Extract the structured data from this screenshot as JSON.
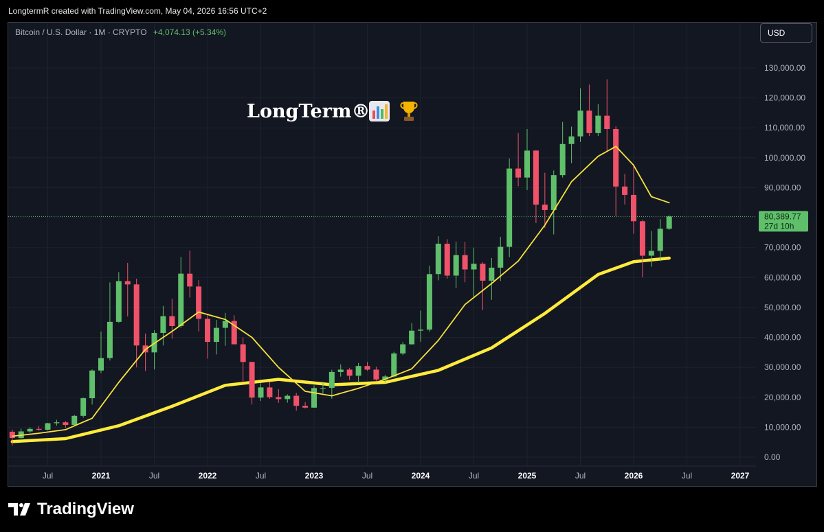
{
  "header": {
    "creator": "LongtermR created with TradingView.com, May 04, 2026 16:56 UTC+2"
  },
  "legend": {
    "symbol": "Bitcoin / U.S. Dollar · 1M · CRYPTO",
    "change": "+4,074.13 (+5.34%)"
  },
  "currency_button": "USD",
  "watermark": "LongTerm®",
  "branding": "TradingView",
  "colors": {
    "up": "#5fbf6a",
    "down": "#f0526a",
    "ma_fast": "#f7e23a",
    "ma_slow": "#ffeb3b",
    "background": "#131722"
  },
  "chart_data": {
    "type": "candlestick",
    "symbol": "Bitcoin / U.S. Dollar",
    "interval": "1M",
    "price_label": "80,389.77",
    "countdown_label": "27d 10h",
    "y_tick_labels": [
      "130,000.00",
      "120,000.00",
      "110,000.00",
      "100,000.00",
      "90,000.00",
      "80,000.00",
      "70,000.00",
      "60,000.00",
      "50,000.00",
      "40,000.00",
      "30,000.00",
      "20,000.00",
      "10,000.00",
      "0.00"
    ],
    "y_ticks": [
      130000,
      120000,
      110000,
      100000,
      90000,
      80000,
      70000,
      60000,
      50000,
      40000,
      30000,
      20000,
      10000,
      0
    ],
    "x_tick_labels": [
      "Jul",
      "2021",
      "Jul",
      "2022",
      "Jul",
      "2023",
      "Jul",
      "2024",
      "Jul",
      "2025",
      "Jul",
      "2026",
      "Jul",
      "2027"
    ],
    "x_ticks": [
      "2020-07",
      "2021-01",
      "2021-07",
      "2022-01",
      "2022-07",
      "2023-01",
      "2023-07",
      "2024-01",
      "2024-07",
      "2025-01",
      "2025-07",
      "2026-01",
      "2026-07",
      "2027-01"
    ],
    "ylim": [
      -1000,
      138000
    ],
    "candles": [
      [
        "2020-03",
        8500,
        9200,
        3900,
        6400
      ],
      [
        "2020-04",
        6400,
        9500,
        6200,
        8600
      ],
      [
        "2020-05",
        8600,
        10000,
        8100,
        9450
      ],
      [
        "2020-06",
        9450,
        10400,
        8900,
        9150
      ],
      [
        "2020-07",
        9150,
        11450,
        8900,
        11350
      ],
      [
        "2020-08",
        11350,
        12480,
        10550,
        11650
      ],
      [
        "2020-09",
        11650,
        12080,
        9850,
        10780
      ],
      [
        "2020-10",
        10780,
        14100,
        10400,
        13800
      ],
      [
        "2020-11",
        13800,
        19900,
        13200,
        19700
      ],
      [
        "2020-12",
        19700,
        29300,
        17600,
        28950
      ],
      [
        "2021-01",
        28950,
        41950,
        28100,
        33100
      ],
      [
        "2021-02",
        33100,
        58350,
        32300,
        45200
      ],
      [
        "2021-03",
        45200,
        61800,
        44900,
        58800
      ],
      [
        "2021-04",
        58800,
        64900,
        47000,
        57700
      ],
      [
        "2021-05",
        57700,
        59600,
        30000,
        37300
      ],
      [
        "2021-06",
        37300,
        41300,
        28800,
        35000
      ],
      [
        "2021-07",
        35000,
        42400,
        29300,
        41500
      ],
      [
        "2021-08",
        41500,
        50500,
        37300,
        47100
      ],
      [
        "2021-09",
        47100,
        52900,
        39600,
        43800
      ],
      [
        "2021-10",
        43800,
        66900,
        43200,
        61300
      ],
      [
        "2021-11",
        61300,
        69000,
        53300,
        57000
      ],
      [
        "2021-12",
        57000,
        59100,
        42000,
        46200
      ],
      [
        "2022-01",
        46200,
        47900,
        32900,
        38500
      ],
      [
        "2022-02",
        38500,
        45800,
        34300,
        43200
      ],
      [
        "2022-03",
        43200,
        48200,
        37200,
        45500
      ],
      [
        "2022-04",
        45500,
        47400,
        37700,
        37700
      ],
      [
        "2022-05",
        37700,
        40000,
        25300,
        31800
      ],
      [
        "2022-06",
        31800,
        31900,
        17600,
        19900
      ],
      [
        "2022-07",
        19900,
        24700,
        18800,
        23300
      ],
      [
        "2022-08",
        23300,
        25200,
        19500,
        20050
      ],
      [
        "2022-09",
        20050,
        22700,
        18150,
        19400
      ],
      [
        "2022-10",
        19400,
        21000,
        18200,
        20500
      ],
      [
        "2022-11",
        20500,
        21450,
        15500,
        17150
      ],
      [
        "2022-12",
        17150,
        18400,
        16250,
        16550
      ],
      [
        "2023-01",
        16550,
        23950,
        16500,
        23100
      ],
      [
        "2023-02",
        23100,
        25250,
        21350,
        23150
      ],
      [
        "2023-03",
        23150,
        29200,
        19550,
        28450
      ],
      [
        "2023-04",
        28450,
        31000,
        26900,
        29250
      ],
      [
        "2023-05",
        29250,
        29850,
        25800,
        27200
      ],
      [
        "2023-06",
        27200,
        31450,
        24800,
        30450
      ],
      [
        "2023-07",
        30450,
        31800,
        28850,
        29250
      ],
      [
        "2023-08",
        29250,
        30200,
        25300,
        25950
      ],
      [
        "2023-09",
        25950,
        27500,
        24900,
        26950
      ],
      [
        "2023-10",
        26950,
        35200,
        26550,
        34650
      ],
      [
        "2023-11",
        34650,
        38450,
        34100,
        37700
      ],
      [
        "2023-12",
        37700,
        44750,
        37600,
        42250
      ],
      [
        "2024-01",
        42250,
        48950,
        38550,
        42600
      ],
      [
        "2024-02",
        42600,
        63950,
        41900,
        61150
      ],
      [
        "2024-03",
        61150,
        73800,
        59050,
        71300
      ],
      [
        "2024-04",
        71300,
        72800,
        59600,
        60650
      ],
      [
        "2024-05",
        60650,
        71950,
        56550,
        67500
      ],
      [
        "2024-06",
        67500,
        71950,
        58400,
        62700
      ],
      [
        "2024-07",
        62700,
        70000,
        53500,
        64600
      ],
      [
        "2024-08",
        64600,
        65100,
        49100,
        58950
      ],
      [
        "2024-09",
        58950,
        66500,
        52550,
        63300
      ],
      [
        "2024-10",
        63300,
        73600,
        58900,
        70250
      ],
      [
        "2024-11",
        70250,
        99800,
        66800,
        96400
      ],
      [
        "2024-12",
        96400,
        108300,
        90500,
        93400
      ],
      [
        "2025-01",
        93400,
        109600,
        89200,
        102400
      ],
      [
        "2025-02",
        102400,
        102500,
        78200,
        84350
      ],
      [
        "2025-03",
        84350,
        95000,
        76600,
        82550
      ],
      [
        "2025-04",
        82550,
        95750,
        74400,
        94200
      ],
      [
        "2025-05",
        94200,
        111950,
        93400,
        104600
      ],
      [
        "2025-06",
        104600,
        110400,
        98200,
        107150
      ],
      [
        "2025-07",
        107150,
        123200,
        105300,
        115750
      ],
      [
        "2025-08",
        115750,
        124450,
        107300,
        108250
      ],
      [
        "2025-09",
        108250,
        117900,
        107300,
        114050
      ],
      [
        "2025-10",
        114050,
        126200,
        102000,
        109600
      ],
      [
        "2025-11",
        109600,
        110500,
        80600,
        90400
      ],
      [
        "2025-12",
        90400,
        94600,
        84400,
        87600
      ],
      [
        "2026-01",
        87600,
        97900,
        74600,
        78800
      ],
      [
        "2026-02",
        78800,
        79300,
        60100,
        67300
      ],
      [
        "2026-03",
        67300,
        75500,
        63600,
        68900
      ],
      [
        "2026-04",
        68900,
        79500,
        65500,
        76300
      ],
      [
        "2026-05",
        76300,
        80800,
        75900,
        80390
      ]
    ],
    "ma_fast": [
      [
        "2020-03",
        7000
      ],
      [
        "2020-06",
        8000
      ],
      [
        "2020-09",
        9200
      ],
      [
        "2020-12",
        13000
      ],
      [
        "2021-03",
        25000
      ],
      [
        "2021-06",
        36000
      ],
      [
        "2021-09",
        42000
      ],
      [
        "2021-12",
        48500
      ],
      [
        "2022-03",
        46000
      ],
      [
        "2022-06",
        40000
      ],
      [
        "2022-09",
        30000
      ],
      [
        "2022-12",
        22000
      ],
      [
        "2023-03",
        20500
      ],
      [
        "2023-06",
        23000
      ],
      [
        "2023-09",
        26000
      ],
      [
        "2023-12",
        29500
      ],
      [
        "2024-03",
        39000
      ],
      [
        "2024-06",
        51000
      ],
      [
        "2024-09",
        58000
      ],
      [
        "2024-12",
        65500
      ],
      [
        "2025-03",
        77500
      ],
      [
        "2025-06",
        92000
      ],
      [
        "2025-09",
        100500
      ],
      [
        "2025-11",
        103800
      ],
      [
        "2026-01",
        97500
      ],
      [
        "2026-03",
        87000
      ],
      [
        "2026-05",
        85000
      ]
    ],
    "ma_slow": [
      [
        "2020-03",
        5200
      ],
      [
        "2020-09",
        6200
      ],
      [
        "2021-03",
        10500
      ],
      [
        "2021-09",
        17000
      ],
      [
        "2022-03",
        24000
      ],
      [
        "2022-09",
        26000
      ],
      [
        "2023-03",
        24200
      ],
      [
        "2023-09",
        25000
      ],
      [
        "2024-03",
        29000
      ],
      [
        "2024-09",
        36500
      ],
      [
        "2025-03",
        48000
      ],
      [
        "2025-09",
        61000
      ],
      [
        "2026-01",
        65300
      ],
      [
        "2026-05",
        66500
      ]
    ]
  }
}
